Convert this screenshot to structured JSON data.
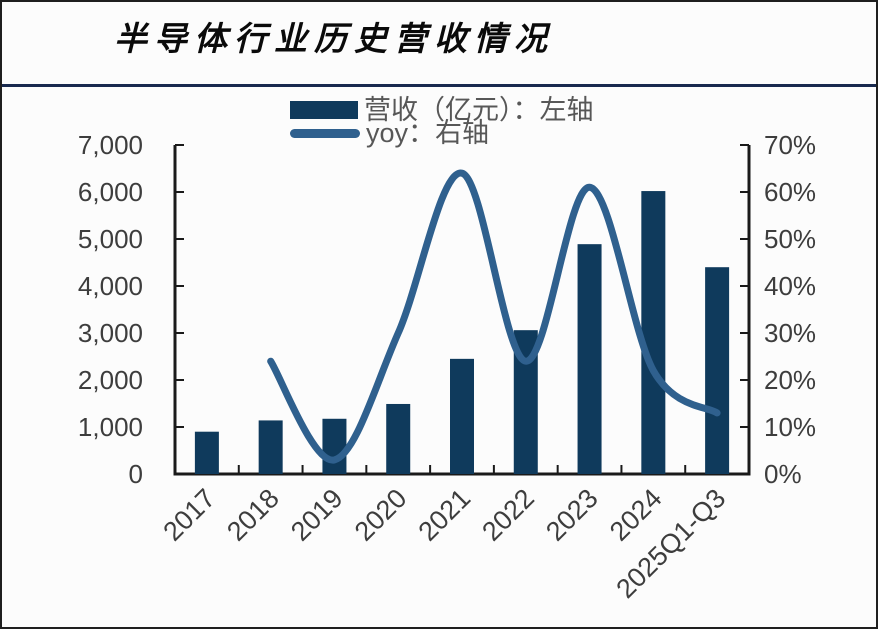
{
  "header": {
    "title": "半导体行业历史营收情况"
  },
  "legend": {
    "revenue_label": "营收（亿元）：左轴",
    "yoy_label": "yoy：右轴"
  },
  "colors": {
    "bar": "#0f3a5c",
    "line": "#2f608e",
    "divider": "#18294e",
    "frame": "#1a1a1a",
    "tick_text": "#3d3d3d",
    "legend_text": "#575757",
    "background": "#fcfcfc"
  },
  "chart_data": {
    "type": "bar",
    "subtype": "combo-bar-line-dual-axis",
    "title": "半导体行业历史营收情况",
    "categories": [
      "2017",
      "2018",
      "2019",
      "2020",
      "2021",
      "2022",
      "2023",
      "2024",
      "2025Q1-Q3"
    ],
    "series": [
      {
        "name": "营收（亿元）：左轴",
        "type": "bar",
        "axis": "left",
        "values": [
          900,
          1140,
          1175,
          1490,
          2450,
          3060,
          4890,
          6020,
          4400
        ]
      },
      {
        "name": "yoy：右轴",
        "type": "line",
        "axis": "right",
        "unit": "%",
        "values": [
          null,
          24,
          3,
          30,
          64,
          24,
          61,
          22,
          13
        ]
      }
    ],
    "left_axis": {
      "min": 0,
      "max": 7000,
      "tick_step": 1000,
      "tick_labels": [
        "0",
        "1,000",
        "2,000",
        "3,000",
        "4,000",
        "5,000",
        "6,000",
        "7,000"
      ]
    },
    "right_axis": {
      "min": 0,
      "max": 70,
      "tick_step": 10,
      "tick_labels": [
        "0%",
        "10%",
        "20%",
        "30%",
        "40%",
        "50%",
        "60%",
        "70%"
      ]
    },
    "grid": false,
    "legend_position": "top-center",
    "x_tick_rotation": 45
  }
}
